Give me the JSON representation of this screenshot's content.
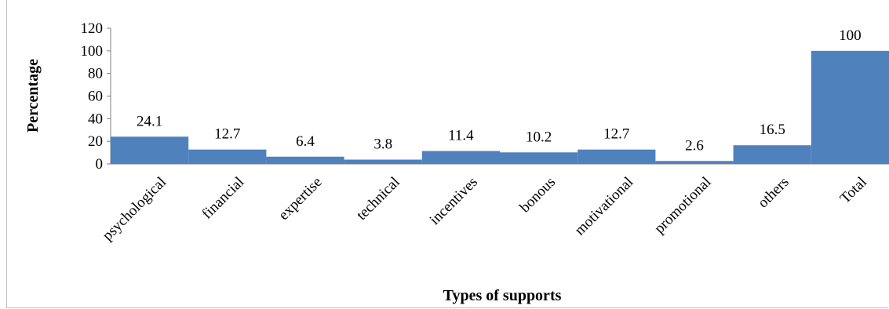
{
  "chart_data": {
    "type": "bar",
    "categories": [
      "psychological",
      "financial",
      "expertise",
      "technical",
      "incentives",
      "bonous",
      "motivational",
      "promotional",
      "others",
      "Total"
    ],
    "values": [
      24.1,
      12.7,
      6.4,
      3.8,
      11.4,
      10.2,
      12.7,
      2.6,
      16.5,
      100
    ],
    "data_labels": [
      "24.1",
      "12.7",
      "6.4",
      "3.8",
      "11.4",
      "10.2",
      "12.7",
      "2.6",
      "16.5",
      "100"
    ],
    "title": "",
    "xlabel": "Types of supports",
    "ylabel": "Percentage",
    "ylim": [
      0,
      120
    ],
    "yticks": [
      0,
      20,
      40,
      60,
      80,
      100,
      120
    ],
    "grid": false,
    "legend": "none",
    "bar_color": "#4F81BD"
  }
}
